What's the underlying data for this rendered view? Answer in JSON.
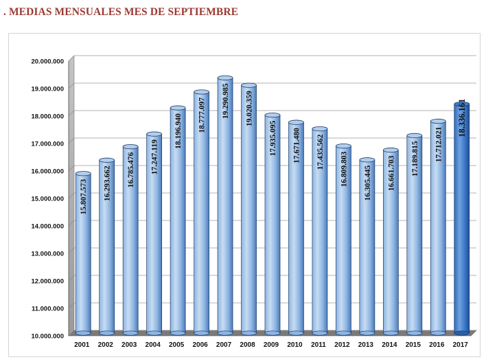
{
  "page": {
    "title": ". MEDIAS MENSUALES MES DE SEPTIEMBRE"
  },
  "colors": {
    "title": "#9b3a32",
    "bar_light": "#c7dcf2",
    "bar_mid": "#8db4e2",
    "bar_dark": "#4a7ab8",
    "bar_highlight": "#3b78c8",
    "wall": "#a8a8a8",
    "floor": "#7a7a7a"
  },
  "chart_data": {
    "type": "bar",
    "title": "",
    "xlabel": "",
    "ylabel": "",
    "ylim": [
      10000000,
      20000000
    ],
    "y_ticks": [
      10000000,
      11000000,
      12000000,
      13000000,
      14000000,
      15000000,
      16000000,
      17000000,
      18000000,
      19000000,
      20000000
    ],
    "y_tick_labels": [
      "10.000.000",
      "11.000.000",
      "12.000.000",
      "13.000.000",
      "14.000.000",
      "15.000.000",
      "16.000.000",
      "17.000.000",
      "18.000.000",
      "19.000.000",
      "20.000.000"
    ],
    "grid": true,
    "style": "3d-cylinder",
    "categories": [
      "2001",
      "2002",
      "2003",
      "2004",
      "2005",
      "2006",
      "2007",
      "2008",
      "2009",
      "2010",
      "2011",
      "2012",
      "2013",
      "2014",
      "2015",
      "2016",
      "2017"
    ],
    "values": [
      15807573,
      16293662,
      16785476,
      17247119,
      18196940,
      18777097,
      19290985,
      19020359,
      17935095,
      17671480,
      17435562,
      16809803,
      16305445,
      16661703,
      17189815,
      17712021,
      18336161
    ],
    "value_labels": [
      "15.807.573",
      "16.293.662",
      "16.785.476",
      "17.247.119",
      "18.196.940",
      "18.777.097",
      "19.290.985",
      "19.020.359",
      "17.935.095",
      "17.671.480",
      "17.435.562",
      "16.809.803",
      "16.305.445",
      "16.661.703",
      "17.189.815",
      "17.712.021",
      "18.336.161"
    ],
    "highlight_category": "2017"
  }
}
